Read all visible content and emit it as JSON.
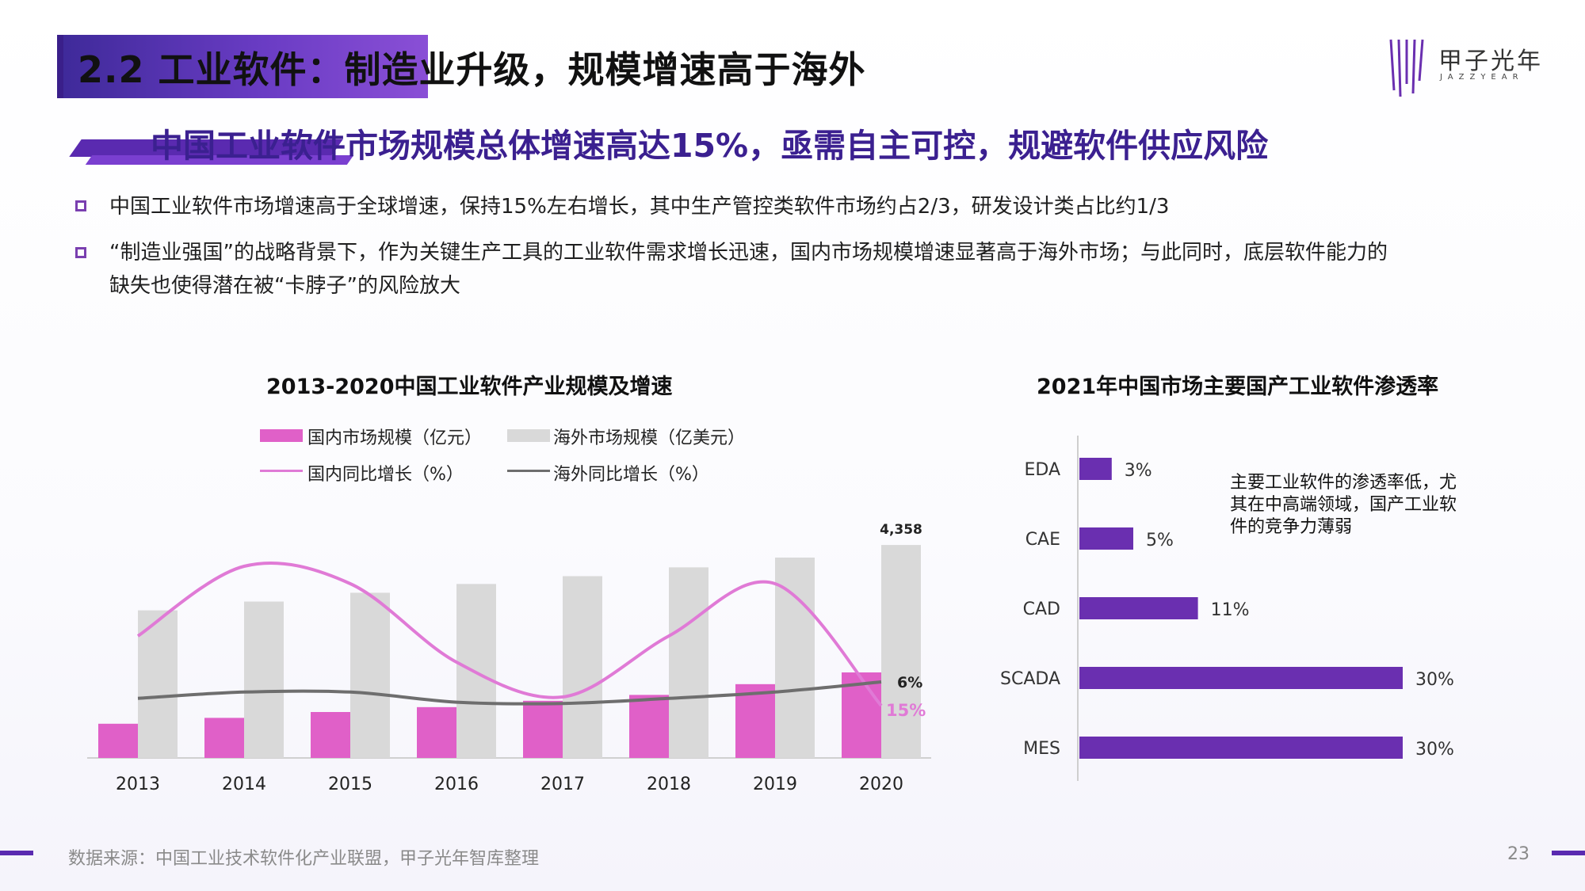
{
  "header": {
    "title": "2.2 工业软件：制造业升级，规模增速高于海外",
    "brand_name": "甲子光年",
    "brand_sub": "JAZZYEAR"
  },
  "subtitle": "中国工业软件市场规模总体增速高达15%，亟需自主可控，规避软件供应风险",
  "bullets": [
    "中国工业软件市场增速高于全球增速，保持15%左右增长，其中生产管控类软件市场约占2/3，研发设计类占比约1/3",
    "“制造业强国”的战略背景下，作为关键生产工具的工业软件需求增长迅速，国内市场规模增速显著高于海外市场；与此同时，底层软件能力的",
    "缺失也使得潜在被“卡脖子”的风险放大"
  ],
  "chart1": {
    "title": "2013-2020中国工业软件产业规模及增速",
    "legend": {
      "domestic_scale": "国内市场规模（亿元）",
      "overseas_scale": "海外市场规模（亿美元）",
      "domestic_growth": "国内同比增长（%）",
      "overseas_growth": "海外同比增长（%）"
    },
    "last_value_label": "4,358",
    "last_domestic_growth_label": "15%",
    "last_overseas_growth_label": "6%"
  },
  "chart2": {
    "title": "2021年中国市场主要国产工业软件渗透率",
    "note": "主要工业软件的渗透率低，尤其在中高端领域，国产工业软件的竞争力薄弱"
  },
  "footer": {
    "source": "数据来源：中国工业技术软件化产业联盟，甲子光年智库整理",
    "page": "23"
  },
  "colors": {
    "domestic": "#e060c8",
    "overseas": "#d9d9d9",
    "domestic_line": "#e07ad6",
    "overseas_line": "#6e6e6e",
    "penetration_bar": "#6a2fb0",
    "accent": "#5a2ab0"
  },
  "chart_data": [
    {
      "type": "bar",
      "categories": [
        "2013",
        "2014",
        "2015",
        "2016",
        "2017",
        "2018",
        "2019",
        "2020"
      ],
      "series": [
        {
          "name": "国内市场规模（亿元）",
          "values": [
            700,
            820,
            940,
            1040,
            1170,
            1290,
            1510,
            1750
          ]
        },
        {
          "name": "海外市场规模（亿美元）",
          "values": [
            3020,
            3200,
            3380,
            3560,
            3720,
            3900,
            4100,
            4358
          ]
        },
        {
          "name": "国内同比增长（%）",
          "values": [
            19,
            23,
            22,
            17.5,
            15.5,
            19,
            22,
            15
          ]
        },
        {
          "name": "海外同比增长（%）",
          "values": [
            4.7,
            5.2,
            5.2,
            4.4,
            4.3,
            4.7,
            5.2,
            6
          ]
        }
      ],
      "title": "2013-2020中国工业软件产业规模及增速"
    },
    {
      "type": "bar",
      "orientation": "horizontal",
      "categories": [
        "EDA",
        "CAE",
        "CAD",
        "SCADA",
        "MES"
      ],
      "values": [
        3,
        5,
        11,
        30,
        30
      ],
      "value_labels": [
        "3%",
        "5%",
        "11%",
        "30%",
        "30%"
      ],
      "title": "2021年中国市场主要国产工业软件渗透率"
    }
  ]
}
